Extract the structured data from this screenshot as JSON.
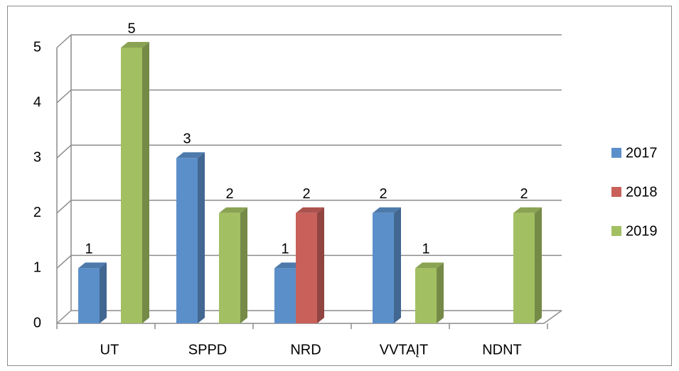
{
  "chart_data": {
    "type": "bar3d",
    "categories": [
      "UT",
      "SPPD",
      "NRD",
      "VVTAĮT",
      "NDNT"
    ],
    "series": [
      {
        "name": "2017",
        "color": "#5b8fc9",
        "values": [
          1,
          3,
          1,
          2,
          null
        ]
      },
      {
        "name": "2018",
        "color": "#c9605a",
        "values": [
          null,
          null,
          2,
          null,
          null
        ]
      },
      {
        "name": "2019",
        "color": "#a2c062",
        "values": [
          5,
          2,
          null,
          1,
          2
        ]
      }
    ],
    "ylim": [
      0,
      5
    ],
    "yticks": [
      0,
      1,
      2,
      3,
      4,
      5
    ],
    "grid": true,
    "legend": "right"
  }
}
